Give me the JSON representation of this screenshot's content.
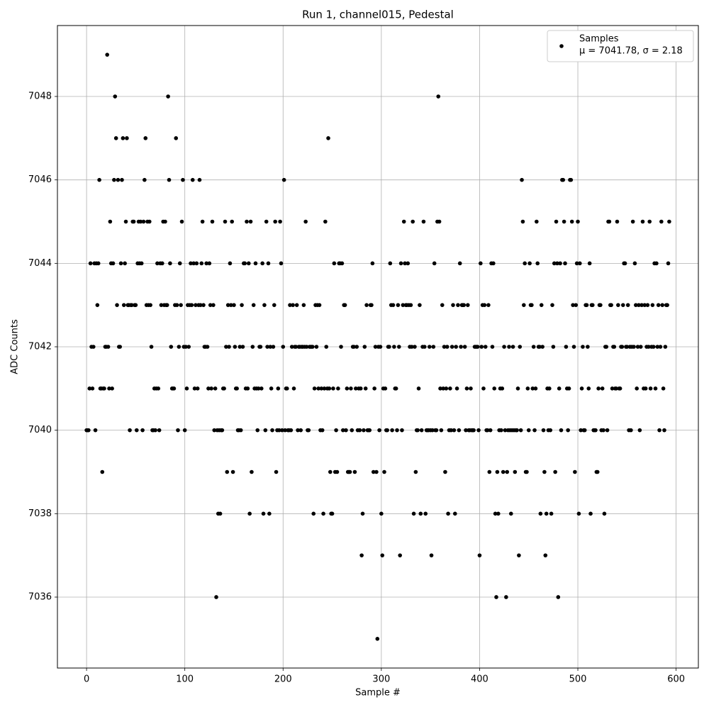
{
  "chart_data": {
    "type": "scatter",
    "title": "Run 1, channel015, Pedestal",
    "xlabel": "Sample #",
    "ylabel": "ADC Counts",
    "grid": true,
    "legend_position": "upper right",
    "annotation": "μ = 7041.78, σ = 2.18",
    "xlim": [
      -29.65,
      622.65
    ],
    "xticks": [
      0,
      100,
      200,
      300,
      400,
      500,
      600
    ],
    "ylim": [
      7034.3,
      7049.7
    ],
    "yticks": [
      7036,
      7038,
      7040,
      7042,
      7044,
      7046,
      7048
    ],
    "x": [
      0,
      1,
      2,
      3,
      4,
      5,
      6,
      7,
      8,
      9,
      10,
      11,
      12,
      13,
      14,
      15,
      16,
      17,
      18,
      19,
      20,
      21,
      22,
      23,
      24,
      25,
      26,
      27,
      28,
      29,
      30,
      31,
      32,
      33,
      34,
      35,
      36,
      37,
      38,
      39,
      40,
      41,
      42,
      43,
      44,
      45,
      46,
      47,
      48,
      49,
      50,
      51,
      52,
      53,
      54,
      55,
      56,
      57,
      58,
      59,
      60,
      61,
      62,
      63,
      64,
      65,
      66,
      67,
      68,
      69,
      70,
      71,
      72,
      73,
      74,
      75,
      76,
      77,
      78,
      79,
      80,
      81,
      82,
      83,
      84,
      85,
      86,
      87,
      88,
      89,
      90,
      91,
      92,
      93,
      94,
      95,
      96,
      97,
      98,
      99,
      100,
      101,
      102,
      103,
      104,
      105,
      106,
      107,
      108,
      109,
      110,
      111,
      112,
      113,
      114,
      115,
      116,
      117,
      118,
      119,
      120,
      121,
      122,
      123,
      124,
      125,
      126,
      127,
      128,
      129,
      130,
      131,
      132,
      133,
      134,
      135,
      136,
      137,
      138,
      139,
      140,
      141,
      142,
      143,
      144,
      145,
      146,
      147,
      148,
      149,
      150,
      151,
      152,
      153,
      154,
      155,
      156,
      157,
      158,
      159,
      160,
      161,
      162,
      163,
      164,
      165,
      166,
      167,
      168,
      169,
      170,
      171,
      172,
      173,
      174,
      175,
      176,
      177,
      178,
      179,
      180,
      181,
      182,
      183,
      184,
      185,
      186,
      187,
      188,
      189,
      190,
      191,
      192,
      193,
      194,
      195,
      196,
      197,
      198,
      199,
      200,
      201,
      202,
      203,
      204,
      205,
      206,
      207,
      208,
      209,
      210,
      211,
      212,
      213,
      214,
      215,
      216,
      217,
      218,
      219,
      220,
      221,
      222,
      223,
      224,
      225,
      226,
      227,
      228,
      229,
      230,
      231,
      232,
      233,
      234,
      235,
      236,
      237,
      238,
      239,
      240,
      241,
      242,
      243,
      244,
      245,
      246,
      247,
      248,
      249,
      250,
      251,
      252,
      253,
      254,
      255,
      256,
      257,
      258,
      259,
      260,
      261,
      262,
      263,
      264,
      265,
      266,
      267,
      268,
      269,
      270,
      271,
      272,
      273,
      274,
      275,
      276,
      277,
      278,
      279,
      280,
      281,
      282,
      283,
      284,
      285,
      286,
      287,
      288,
      289,
      290,
      291,
      292,
      293,
      294,
      295,
      296,
      297,
      298,
      299,
      300,
      301,
      302,
      303,
      304,
      305,
      306,
      307,
      308,
      309,
      310,
      311,
      312,
      313,
      314,
      315,
      316,
      317,
      318,
      319,
      320,
      321,
      322,
      323,
      324,
      325,
      326,
      327,
      328,
      329,
      330,
      331,
      332,
      333,
      334,
      335,
      336,
      337,
      338,
      339,
      340,
      341,
      342,
      343,
      344,
      345,
      346,
      347,
      348,
      349,
      350,
      351,
      352,
      353,
      354,
      355,
      356,
      357,
      358,
      359,
      360,
      361,
      362,
      363,
      364,
      365,
      366,
      367,
      368,
      369,
      370,
      371,
      372,
      373,
      374,
      375,
      376,
      377,
      378,
      379,
      380,
      381,
      382,
      383,
      384,
      385,
      386,
      387,
      388,
      389,
      390,
      391,
      392,
      393,
      394,
      395,
      396,
      397,
      398,
      399,
      400,
      401,
      402,
      403,
      404,
      405,
      406,
      407,
      408,
      409,
      410,
      411,
      412,
      413,
      414,
      415,
      416,
      417,
      418,
      419,
      420,
      421,
      422,
      423,
      424,
      425,
      426,
      427,
      428,
      429,
      430,
      431,
      432,
      433,
      434,
      435,
      436,
      437,
      438,
      439,
      440,
      441,
      442,
      443,
      444,
      445,
      446,
      447,
      448,
      449,
      450,
      451,
      452,
      453,
      454,
      455,
      456,
      457,
      458,
      459,
      460,
      461,
      462,
      463,
      464,
      465,
      466,
      467,
      468,
      469,
      470,
      471,
      472,
      473,
      474,
      475,
      476,
      477,
      478,
      479,
      480,
      481,
      482,
      483,
      484,
      485,
      486,
      487,
      488,
      489,
      490,
      491,
      492,
      493,
      494,
      495,
      496,
      497,
      498,
      499,
      500,
      501,
      502,
      503,
      504,
      505,
      506,
      507,
      508,
      509,
      510,
      511,
      512,
      513,
      514,
      515,
      516,
      517,
      518,
      519,
      520,
      521,
      522,
      523,
      524,
      525,
      526,
      527,
      528,
      529,
      530,
      531,
      532,
      533,
      534,
      535,
      536,
      537,
      538,
      539,
      540,
      541,
      542,
      543,
      544,
      545,
      546,
      547,
      548,
      549,
      550,
      551,
      552,
      553,
      554,
      555,
      556,
      557,
      558,
      559,
      560,
      561,
      562,
      563,
      564,
      565,
      566,
      567,
      568,
      569,
      570,
      571,
      572,
      573,
      574,
      575,
      576,
      577,
      578,
      579,
      580,
      581,
      582,
      583,
      584,
      585,
      586,
      587,
      588,
      589,
      590,
      591,
      592,
      593
    ],
    "series": [
      {
        "name": "Samples",
        "color": "#000000",
        "values": [
          7040,
          7040,
          7040,
          7041,
          7044,
          7042,
          7041,
          7042,
          7044,
          7040,
          7044,
          7043,
          7044,
          7046,
          7041,
          7041,
          7039,
          7041,
          7041,
          7042,
          7042,
          7049,
          7042,
          7041,
          7045,
          7044,
          7041,
          7044,
          7046,
          7048,
          7047,
          7043,
          7046,
          7042,
          7042,
          7044,
          7046,
          7047,
          7043,
          7044,
          7045,
          7047,
          7043,
          7043,
          7040,
          7043,
          7043,
          7045,
          7045,
          7043,
          7043,
          7040,
          7044,
          7045,
          7044,
          7045,
          7044,
          7040,
          7045,
          7046,
          7047,
          7043,
          7045,
          7043,
          7045,
          7043,
          7042,
          7040,
          7040,
          7041,
          7040,
          7041,
          7044,
          7041,
          7040,
          7044,
          7043,
          7044,
          7045,
          7043,
          7045,
          7043,
          7043,
          7048,
          7046,
          7044,
          7042,
          7041,
          7041,
          7041,
          7043,
          7047,
          7043,
          7040,
          7042,
          7044,
          7043,
          7045,
          7046,
          7042,
          7040,
          7042,
          7041,
          7043,
          7042,
          7043,
          7044,
          7043,
          7046,
          7044,
          7041,
          7043,
          7044,
          7041,
          7043,
          7046,
          7043,
          7044,
          7045,
          7043,
          7042,
          7042,
          7044,
          7042,
          7041,
          7044,
          7043,
          7041,
          7045,
          7043,
          7040,
          7041,
          7036,
          7040,
          7038,
          7040,
          7038,
          7040,
          7040,
          7041,
          7041,
          7045,
          7042,
          7039,
          7043,
          7042,
          7044,
          7043,
          7045,
          7039,
          7043,
          7042,
          7041,
          7041,
          7040,
          7040,
          7042,
          7040,
          7043,
          7042,
          7044,
          7044,
          7041,
          7045,
          7041,
          7044,
          7038,
          7045,
          7039,
          7042,
          7043,
          7041,
          7044,
          7041,
          7040,
          7041,
          7042,
          7042,
          7041,
          7044,
          7038,
          7043,
          7040,
          7045,
          7042,
          7044,
          7038,
          7042,
          7041,
          7040,
          7042,
          7043,
          7045,
          7039,
          7040,
          7041,
          7040,
          7045,
          7044,
          7040,
          7042,
          7046,
          7040,
          7041,
          7041,
          7040,
          7040,
          7043,
          7040,
          7042,
          7043,
          7041,
          7042,
          7042,
          7043,
          7040,
          7042,
          7042,
          7040,
          7042,
          7042,
          7043,
          7042,
          7045,
          7042,
          7040,
          7040,
          7042,
          7042,
          7042,
          7042,
          7038,
          7041,
          7043,
          7042,
          7043,
          7041,
          7043,
          7040,
          7041,
          7040,
          7038,
          7041,
          7045,
          7042,
          7041,
          7047,
          7041,
          7039,
          7038,
          7038,
          7041,
          7044,
          7039,
          7040,
          7039,
          7041,
          7044,
          7044,
          7042,
          7044,
          7040,
          7043,
          7043,
          7040,
          7041,
          7039,
          7039,
          7039,
          7041,
          7040,
          7042,
          7042,
          7039,
          7041,
          7042,
          7040,
          7041,
          7040,
          7041,
          7037,
          7038,
          7040,
          7042,
          7041,
          7043,
          7040,
          7040,
          7040,
          7043,
          7043,
          7044,
          7039,
          7041,
          7042,
          7039,
          7035,
          7042,
          7040,
          7042,
          7038,
          7037,
          7041,
          7039,
          7041,
          7040,
          7040,
          7042,
          7042,
          7044,
          7043,
          7040,
          7043,
          7042,
          7041,
          7041,
          7040,
          7043,
          7042,
          7037,
          7044,
          7040,
          7043,
          7045,
          7044,
          7043,
          7043,
          7044,
          7043,
          7042,
          7043,
          7042,
          7045,
          7038,
          7042,
          7039,
          7040,
          7040,
          7041,
          7043,
          7038,
          7040,
          7042,
          7045,
          7042,
          7038,
          7040,
          7040,
          7040,
          7042,
          7040,
          7037,
          7040,
          7042,
          7044,
          7040,
          7040,
          7045,
          7048,
          7045,
          7041,
          7040,
          7043,
          7041,
          7042,
          7039,
          7041,
          7042,
          7038,
          7040,
          7041,
          7040,
          7042,
          7043,
          7040,
          7038,
          7042,
          7041,
          7043,
          7040,
          7044,
          7042,
          7043,
          7043,
          7043,
          7042,
          7040,
          7041,
          7043,
          7040,
          7040,
          7041,
          7040,
          7040,
          7040,
          7042,
          7042,
          7042,
          7042,
          7040,
          7037,
          7044,
          7042,
          7043,
          7041,
          7043,
          7042,
          7040,
          7040,
          7043,
          7039,
          7040,
          7044,
          7042,
          7044,
          7041,
          7038,
          7036,
          7039,
          7038,
          7040,
          7041,
          7040,
          7041,
          7039,
          7042,
          7040,
          7036,
          7039,
          7040,
          7042,
          7040,
          7038,
          7040,
          7042,
          7040,
          7039,
          7040,
          7040,
          7041,
          7037,
          7042,
          7040,
          7046,
          7045,
          7043,
          7044,
          7039,
          7039,
          7041,
          7040,
          7044,
          7043,
          7043,
          7041,
          7042,
          7040,
          7041,
          7045,
          7044,
          7042,
          7042,
          7038,
          7043,
          7042,
          7040,
          7039,
          7037,
          7038,
          7041,
          7040,
          7041,
          7040,
          7038,
          7043,
          7042,
          7044,
          7039,
          7045,
          7044,
          7036,
          7041,
          7044,
          7040,
          7046,
          7046,
          7045,
          7044,
          7042,
          7041,
          7040,
          7041,
          7046,
          7046,
          7045,
          7043,
          7042,
          7039,
          7043,
          7044,
          7045,
          7038,
          7044,
          7040,
          7041,
          7042,
          7040,
          7040,
          7043,
          7043,
          7042,
          7041,
          7044,
          7038,
          7043,
          7043,
          7040,
          7040,
          7040,
          7039,
          7039,
          7041,
          7043,
          7043,
          7040,
          7041,
          7040,
          7038,
          7042,
          7042,
          7040,
          7045,
          7045,
          7043,
          7043,
          7041,
          7042,
          7042,
          7041,
          7041,
          7045,
          7043,
          7041,
          7041,
          7042,
          7042,
          7043,
          7044,
          7044,
          7042,
          7042,
          7043,
          7040,
          7042,
          7040,
          7042,
          7045,
          7042,
          7044,
          7043,
          7041,
          7042,
          7043,
          7040,
          7042,
          7043,
          7045,
          7041,
          7043,
          7041,
          7042,
          7043,
          7042,
          7045,
          7041,
          7042,
          7043,
          7042,
          7044,
          7041,
          7044,
          7042,
          7043,
          7040,
          7042,
          7045,
          7043,
          7041,
          7040,
          7042,
          7043,
          7043,
          7044,
          7045
        ]
      }
    ]
  }
}
